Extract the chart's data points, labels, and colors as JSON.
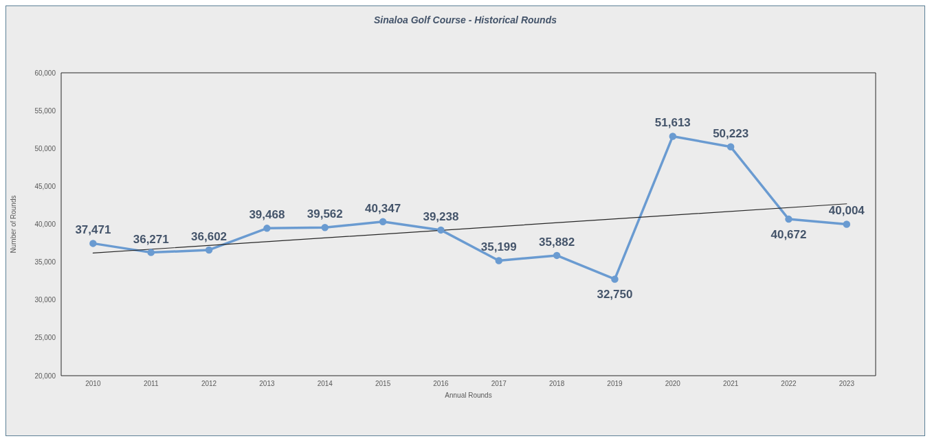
{
  "chart_data": {
    "type": "line",
    "title": "Sinaloa Golf Course - Historical Rounds",
    "xlabel": "Annual Rounds",
    "ylabel": "Number of Rounds",
    "xlim": [
      2009.45,
      2023.5
    ],
    "xticks": [
      2010,
      2011,
      2012,
      2013,
      2014,
      2015,
      2016,
      2017,
      2018,
      2019,
      2020,
      2021,
      2022,
      2023
    ],
    "ylim": [
      20000,
      60000
    ],
    "yticks": [
      {
        "value": 20000,
        "label": "20,000"
      },
      {
        "value": 25000,
        "label": "25,000"
      },
      {
        "value": 30000,
        "label": "30,000"
      },
      {
        "value": 35000,
        "label": "35,000"
      },
      {
        "value": 40000,
        "label": "40,000"
      },
      {
        "value": 45000,
        "label": "45,000"
      },
      {
        "value": 50000,
        "label": "50,000"
      },
      {
        "value": 55000,
        "label": "55,000"
      },
      {
        "value": 60000,
        "label": "60,000"
      }
    ],
    "marker": "circle",
    "line_style": "solid",
    "series": [
      {
        "color": "#6a9bd1",
        "x": [
          2010,
          2011,
          2012,
          2013,
          2014,
          2015,
          2016,
          2017,
          2018,
          2019,
          2020,
          2021,
          2022,
          2023
        ],
        "values": [
          37471,
          36271,
          36602,
          39468,
          39562,
          40347,
          39238,
          35199,
          35882,
          32750,
          51613,
          50223,
          40672,
          40004
        ],
        "value_labels": [
          "37,471",
          "36,271",
          "36,602",
          "39,468",
          "39,562",
          "40,347",
          "39,238",
          "35,199",
          "35,882",
          "32,750",
          "51,613",
          "50,223",
          "40,672",
          "40,004"
        ]
      },
      {
        "color": "#262626",
        "x": [
          2010,
          2023
        ],
        "values": [
          36200,
          42700
        ],
        "marker": "none"
      }
    ]
  }
}
